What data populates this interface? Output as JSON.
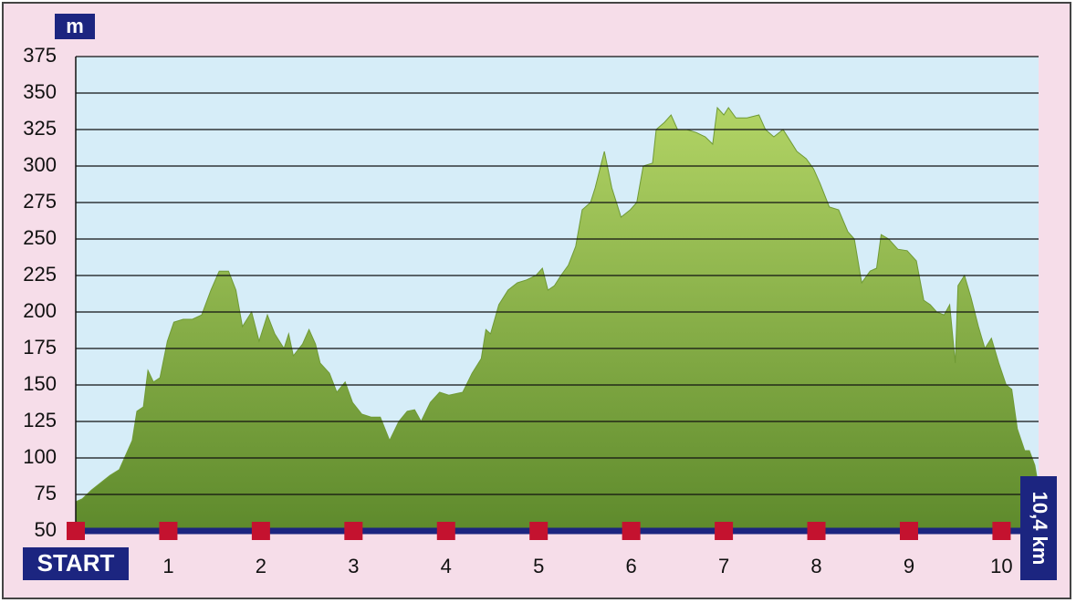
{
  "chart_data": {
    "type": "area",
    "y_label": "m",
    "end_label": "10,4 km",
    "color": "#8db544",
    "xlim": [
      0,
      10.4
    ],
    "ylim": [
      50,
      375
    ],
    "yticks": [
      50,
      75,
      100,
      125,
      150,
      175,
      200,
      225,
      250,
      275,
      300,
      325,
      350,
      375
    ],
    "xticks": [
      {
        "value": 0,
        "label": "START"
      },
      1,
      2,
      3,
      4,
      5,
      6,
      7,
      8,
      9,
      10
    ],
    "grid": true,
    "x": [
      0,
      0.07,
      0.17,
      0.37,
      0.47,
      0.61,
      0.66,
      0.73,
      0.78,
      0.84,
      0.91,
      0.99,
      1.06,
      1.16,
      1.26,
      1.36,
      1.46,
      1.55,
      1.65,
      1.73,
      1.8,
      1.9,
      1.98,
      2.07,
      2.15,
      2.25,
      2.3,
      2.35,
      2.45,
      2.52,
      2.59,
      2.64,
      2.74,
      2.82,
      2.91,
      2.99,
      3.09,
      3.19,
      3.29,
      3.39,
      3.49,
      3.58,
      3.66,
      3.73,
      3.83,
      3.93,
      4.03,
      4.18,
      4.28,
      4.38,
      4.43,
      4.48,
      4.57,
      4.67,
      4.77,
      4.87,
      4.97,
      5.04,
      5.1,
      5.17,
      5.24,
      5.32,
      5.4,
      5.47,
      5.56,
      5.61,
      5.71,
      5.79,
      5.89,
      5.99,
      6.06,
      6.13,
      6.23,
      6.27,
      6.36,
      6.43,
      6.5,
      6.6,
      6.7,
      6.8,
      6.88,
      6.93,
      7.0,
      7.05,
      7.13,
      7.25,
      7.38,
      7.45,
      7.54,
      7.64,
      7.71,
      7.79,
      7.89,
      7.97,
      8.04,
      8.14,
      8.24,
      8.34,
      8.41,
      8.49,
      8.58,
      8.65,
      8.7,
      8.78,
      8.88,
      8.98,
      9.08,
      9.16,
      9.23,
      9.3,
      9.38,
      9.44,
      9.5,
      9.53,
      9.6,
      9.67,
      9.75,
      9.82,
      9.89,
      9.97,
      10.05,
      10.11,
      10.17,
      10.25,
      10.3,
      10.36,
      10.4
    ],
    "values": [
      70,
      72,
      78,
      88,
      92,
      112,
      132,
      135,
      160,
      152,
      155,
      180,
      193,
      195,
      195,
      198,
      215,
      228,
      228,
      215,
      190,
      200,
      180,
      198,
      185,
      175,
      185,
      170,
      178,
      188,
      178,
      165,
      158,
      145,
      152,
      138,
      130,
      128,
      128,
      112,
      125,
      132,
      133,
      125,
      138,
      145,
      143,
      145,
      158,
      168,
      188,
      185,
      205,
      215,
      220,
      222,
      225,
      230,
      215,
      218,
      225,
      232,
      245,
      270,
      275,
      285,
      310,
      285,
      265,
      270,
      275,
      300,
      302,
      325,
      330,
      335,
      325,
      325,
      323,
      320,
      315,
      340,
      335,
      340,
      333,
      333,
      335,
      325,
      320,
      325,
      318,
      310,
      305,
      298,
      288,
      272,
      270,
      255,
      250,
      220,
      228,
      230,
      253,
      250,
      243,
      242,
      235,
      208,
      205,
      200,
      198,
      205,
      165,
      218,
      225,
      210,
      190,
      175,
      182,
      165,
      150,
      147,
      120,
      105,
      105,
      95,
      80
    ]
  }
}
